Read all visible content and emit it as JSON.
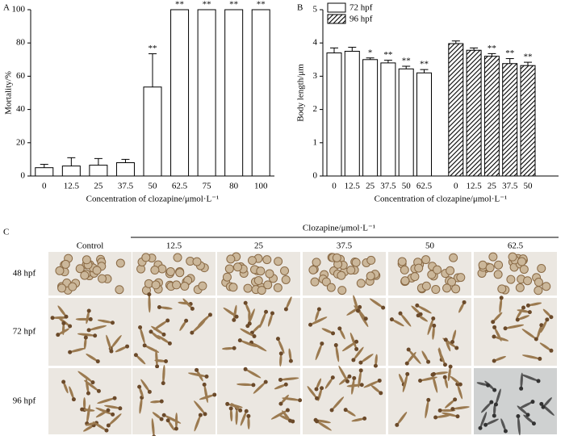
{
  "panel_labels": [
    "A",
    "B",
    "C"
  ],
  "chart_data": [
    {
      "type": "bar",
      "categories": [
        0,
        12.5,
        25,
        37.5,
        50,
        62.5,
        75,
        80,
        100
      ],
      "values": [
        5,
        6,
        6.5,
        8,
        53.5,
        100,
        100,
        100,
        100
      ],
      "errors": [
        2,
        5,
        4,
        2,
        20,
        0,
        0,
        0,
        0
      ],
      "annotations": [
        null,
        null,
        null,
        null,
        "**",
        "**",
        "**",
        "**",
        "**"
      ],
      "color": "#ffffff",
      "xlabel": "Concentration of clozapine/μmol·L⁻¹",
      "ylabel": "Mortality/%",
      "ylim": [
        0,
        100
      ],
      "yticks": [
        0,
        20,
        40,
        60,
        80,
        100
      ]
    },
    {
      "type": "bar",
      "categories": [
        0,
        12.5,
        25,
        37.5,
        50,
        62.5,
        0,
        12.5,
        25,
        37.5,
        50
      ],
      "series": [
        {
          "name": "72 hpf",
          "color": "#ffffff",
          "hatch": false,
          "values": [
            3.7,
            3.75,
            3.5,
            3.4,
            3.22,
            3.1,
            null,
            null,
            null,
            null,
            null
          ],
          "errors": [
            0.15,
            0.12,
            0.05,
            0.08,
            0.08,
            0.1,
            null,
            null,
            null,
            null,
            null
          ],
          "annotations": [
            null,
            null,
            "*",
            "**",
            "**",
            "**",
            null,
            null,
            null,
            null,
            null
          ]
        },
        {
          "name": "96 hpf",
          "color": "#ffffff",
          "hatch": true,
          "values": [
            null,
            null,
            null,
            null,
            null,
            null,
            3.98,
            3.78,
            3.6,
            3.38,
            3.32
          ],
          "errors": [
            null,
            null,
            null,
            null,
            null,
            null,
            0.08,
            0.07,
            0.08,
            0.15,
            0.1
          ],
          "annotations": [
            null,
            null,
            null,
            null,
            null,
            null,
            null,
            null,
            "**",
            "**",
            "**"
          ]
        }
      ],
      "xlabel": "Concentration of clozapine/μmol·L⁻¹",
      "ylabel": "Body length/μm",
      "ylim": [
        0,
        5
      ],
      "yticks": [
        0,
        1,
        2,
        3,
        4,
        5
      ],
      "legend": "upper left"
    }
  ],
  "panel_c": {
    "header": "Clozapine/μmol·L⁻¹",
    "columns": [
      "Control",
      "12.5",
      "25",
      "37.5",
      "50",
      "62.5"
    ],
    "rows": [
      "48 hpf",
      "72 hpf",
      "96 hpf"
    ]
  }
}
